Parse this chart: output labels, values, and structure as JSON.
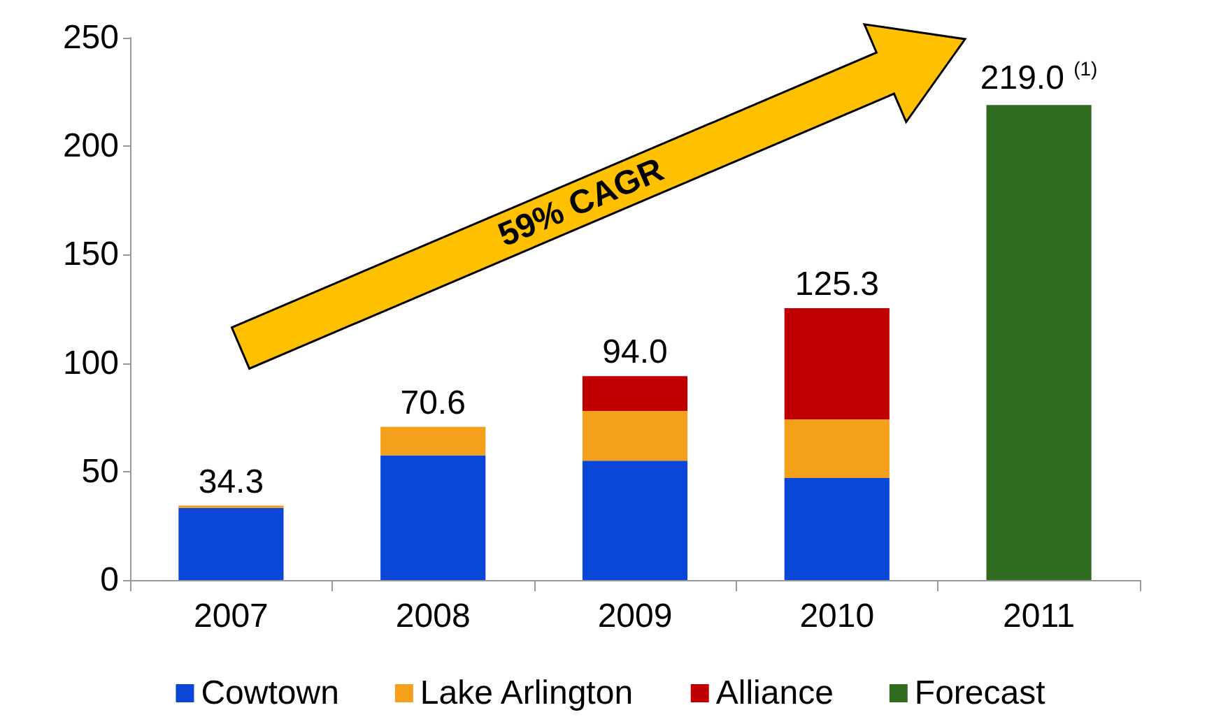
{
  "chart_data": {
    "type": "bar",
    "stacked": true,
    "categories": [
      "2007",
      "2008",
      "2009",
      "2010",
      "2011"
    ],
    "series": [
      {
        "name": "Cowtown",
        "color": "#0a46d8",
        "values": [
          33.3,
          57.5,
          55.0,
          47.0,
          null
        ]
      },
      {
        "name": "Lake Arlington",
        "color": "#f5a01a",
        "values": [
          1.0,
          13.1,
          23.0,
          27.0,
          null
        ]
      },
      {
        "name": "Alliance",
        "color": "#c00000",
        "values": [
          null,
          null,
          16.0,
          51.3,
          null
        ]
      },
      {
        "name": "Forecast",
        "color": "#2e6b1f",
        "values": [
          null,
          null,
          null,
          null,
          219.0
        ]
      }
    ],
    "totals": [
      "34.3",
      "70.6",
      "94.0",
      "125.3",
      "219.0 $^{(1)}$"
    ],
    "ylim": [
      0,
      250
    ],
    "yticks": [
      0,
      50,
      100,
      150,
      200,
      250
    ],
    "grid": false,
    "legend": "bottom",
    "annotations": [
      "59% CAGR"
    ]
  }
}
